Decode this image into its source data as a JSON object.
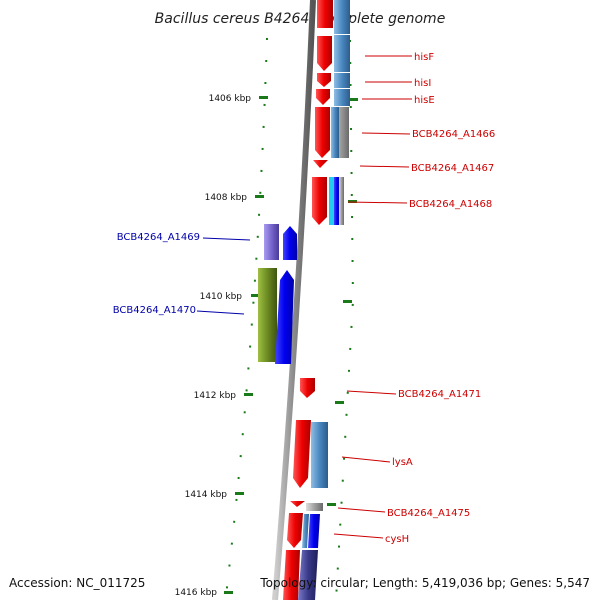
{
  "title": "Bacillus cereus B4264, complete genome",
  "footer": {
    "accession": "Accession: NC_011725",
    "topology": "Topology: circular; Length: 5,419,036 bp; Genes: 5,547"
  },
  "colors": {
    "backbone": "#8a8a8a",
    "tick": "#1a7a1a",
    "forward_label": "#cc0000",
    "reverse_label": "#0000aa",
    "forward_gene": "#ee1111",
    "reverse_gene": "#1111ee",
    "cog_blue": "#4a88c0",
    "cog_cyan": "#22ccee",
    "cog_purple": "#7766cc",
    "cog_olive": "#6b8a22",
    "cog_gray": "#a0a0a0",
    "cog_navy": "#3a3a8a"
  },
  "scale_labels": [
    "1406 kbp",
    "1408 kbp",
    "1410 kbp",
    "1412 kbp",
    "1414 kbp",
    "1416 kbp"
  ],
  "forward_genes": [
    {
      "name": "hisF",
      "cog": "cog_blue"
    },
    {
      "name": "hisI",
      "cog": "cog_blue"
    },
    {
      "name": "hisE",
      "cog": "cog_blue"
    },
    {
      "name": "BCB4264_A1466",
      "cog": "cog_gray"
    },
    {
      "name": "BCB4264_A1467",
      "cog": ""
    },
    {
      "name": "BCB4264_A1468",
      "cog": "cog_cyan"
    },
    {
      "name": "BCB4264_A1471",
      "cog": ""
    },
    {
      "name": "lysA",
      "cog": "cog_blue"
    },
    {
      "name": "BCB4264_A1475",
      "cog": "cog_gray"
    },
    {
      "name": "cysH",
      "cog": "cog_blue"
    }
  ],
  "reverse_genes": [
    {
      "name": "BCB4264_A1469",
      "cog": "cog_purple"
    },
    {
      "name": "BCB4264_A1470",
      "cog": "cog_olive"
    }
  ]
}
